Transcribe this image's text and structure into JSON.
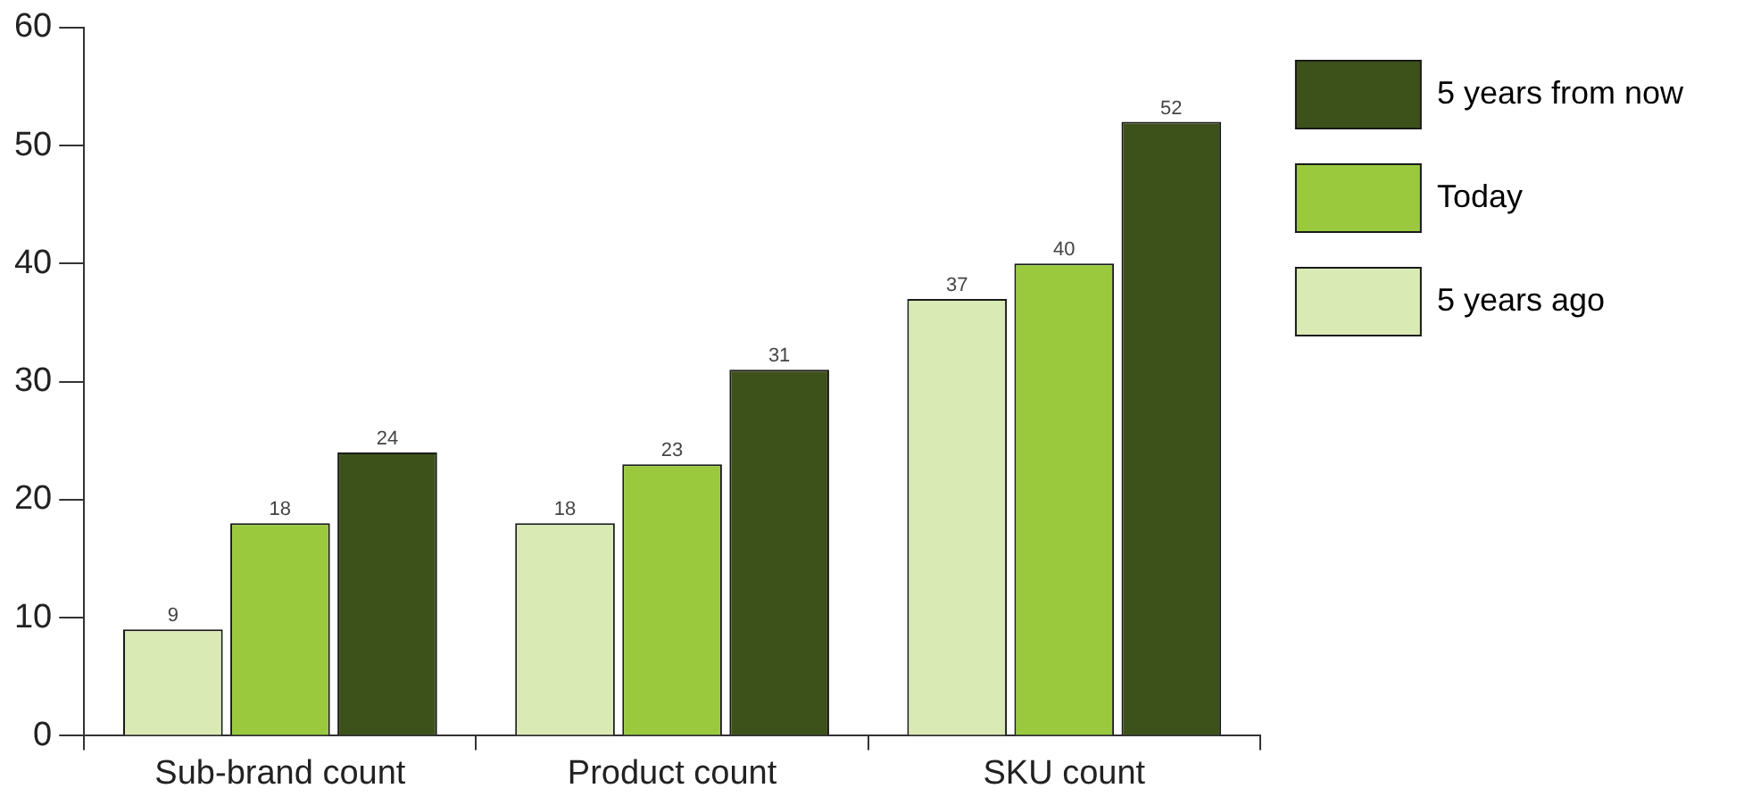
{
  "chart_data": {
    "type": "bar",
    "categories": [
      "Sub-brand count",
      "Product count",
      "SKU count"
    ],
    "series": [
      {
        "name": "5 years ago",
        "color": "#d9eab4",
        "values": [
          9,
          18,
          37
        ]
      },
      {
        "name": "Today",
        "color": "#9ac93e",
        "values": [
          18,
          23,
          40
        ]
      },
      {
        "name": "5 years from now",
        "color": "#3d521b",
        "values": [
          24,
          31,
          52
        ]
      }
    ],
    "ylim": [
      0,
      60
    ],
    "yticks": [
      0,
      10,
      20,
      30,
      40,
      50,
      60
    ],
    "legend": "top right",
    "data_labels": true
  }
}
